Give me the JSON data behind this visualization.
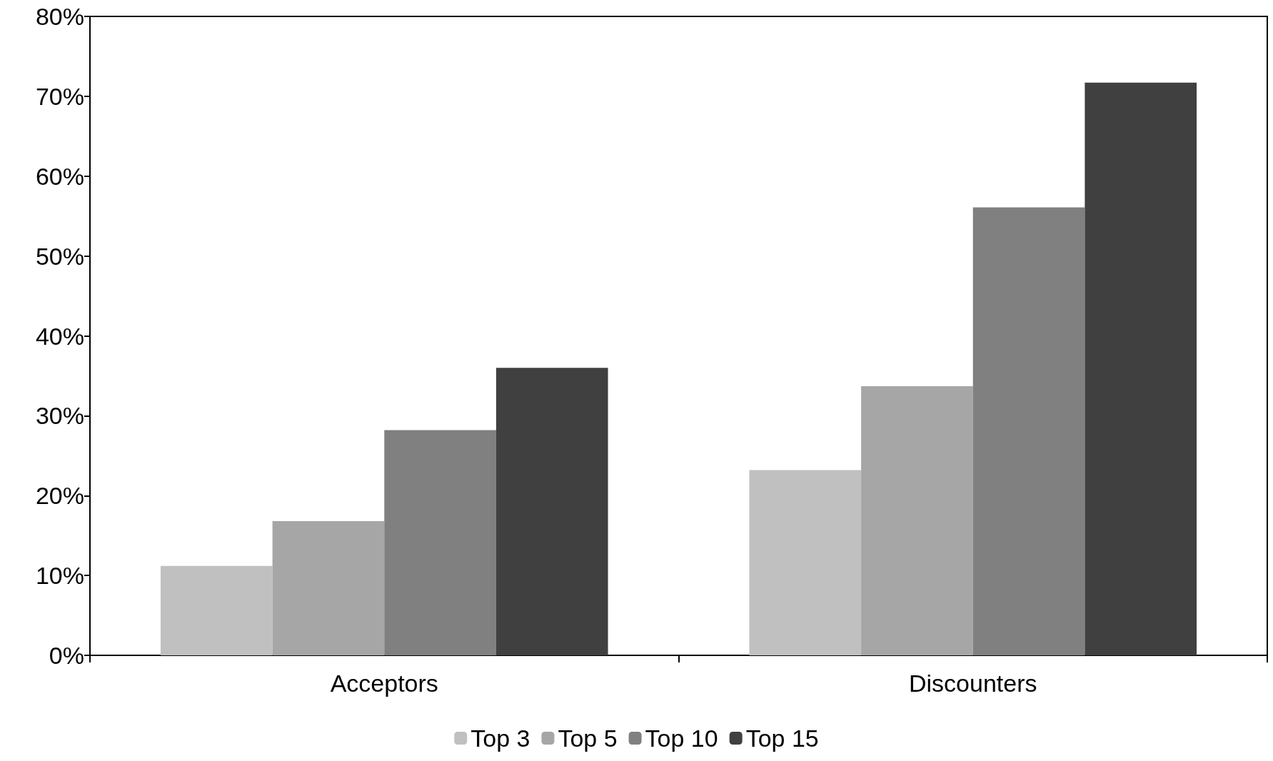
{
  "chart_data": {
    "type": "bar",
    "categories": [
      "Acceptors",
      "Discounters"
    ],
    "series": [
      {
        "name": "Top 3",
        "color": "#c0c0c0",
        "values": [
          11.2,
          23.2
        ]
      },
      {
        "name": "Top 5",
        "color": "#a6a6a6",
        "values": [
          16.8,
          33.7
        ]
      },
      {
        "name": "Top 10",
        "color": "#808080",
        "values": [
          28.2,
          56.1
        ]
      },
      {
        "name": "Top 15",
        "color": "#404040",
        "values": [
          36.0,
          71.7
        ]
      }
    ],
    "ylim": [
      0,
      80
    ],
    "yticks": [
      {
        "value": 0,
        "label": "0%"
      },
      {
        "value": 10,
        "label": "10%"
      },
      {
        "value": 20,
        "label": "20%"
      },
      {
        "value": 30,
        "label": "30%"
      },
      {
        "value": 40,
        "label": "40%"
      },
      {
        "value": 50,
        "label": "50%"
      },
      {
        "value": 60,
        "label": "60%"
      },
      {
        "value": 70,
        "label": "70%"
      },
      {
        "value": 80,
        "label": "80%"
      }
    ],
    "grid": false,
    "legend": "bottom"
  }
}
